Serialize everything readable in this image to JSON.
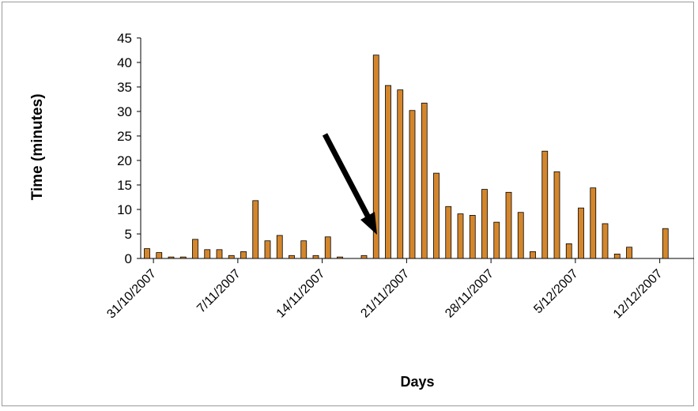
{
  "chart_data": {
    "type": "bar",
    "xlabel": "Days",
    "ylabel": "Time (minutes)",
    "ylim": [
      0,
      45
    ],
    "y_ticks": [
      "0",
      "5",
      "10",
      "15",
      "20",
      "25",
      "30",
      "35",
      "40",
      "45"
    ],
    "x_tick_labels": [
      "31/10/2007",
      "7/11/2007",
      "14/11/2007",
      "21/11/2007",
      "28/11/2007",
      "5/12/2007",
      "12/12/2007"
    ],
    "bar_color": "#d4862c",
    "grid": false,
    "legend": "none",
    "annotation": "arrow pointing to 19/11/2007",
    "series": [
      {
        "dates": [
          "30/10/2007",
          "31/10/2007",
          "1/11/2007",
          "2/11/2007",
          "3/11/2007",
          "4/11/2007",
          "5/11/2007",
          "6/11/2007",
          "7/11/2007",
          "8/11/2007",
          "9/11/2007",
          "10/11/2007",
          "11/11/2007",
          "12/11/2007",
          "13/11/2007",
          "14/11/2007",
          "15/11/2007",
          "16/11/2007",
          "17/11/2007",
          "18/11/2007",
          "19/11/2007",
          "20/11/2007",
          "21/11/2007",
          "22/11/2007",
          "23/11/2007",
          "24/11/2007",
          "25/11/2007",
          "26/11/2007",
          "27/11/2007",
          "28/11/2007",
          "29/11/2007",
          "30/11/2007",
          "1/12/2007",
          "2/12/2007",
          "3/12/2007",
          "4/12/2007",
          "5/12/2007",
          "6/12/2007",
          "7/12/2007",
          "8/12/2007",
          "9/12/2007",
          "10/12/2007",
          "11/12/2007",
          "12/12/2007"
        ],
        "values": [
          2.0,
          1.2,
          0.3,
          0.3,
          3.9,
          1.8,
          1.8,
          0.6,
          1.4,
          11.8,
          3.6,
          4.7,
          0.6,
          3.6,
          0.6,
          4.4,
          0.3,
          0,
          0.6,
          41.5,
          35.3,
          34.4,
          30.2,
          31.7,
          17.4,
          10.6,
          9.1,
          8.8,
          14.1,
          7.4,
          13.5,
          9.4,
          1.4,
          21.9,
          17.7,
          3.0,
          10.3,
          14.4,
          7.1,
          0.9,
          2.3,
          0,
          0,
          6.1
        ]
      }
    ]
  }
}
